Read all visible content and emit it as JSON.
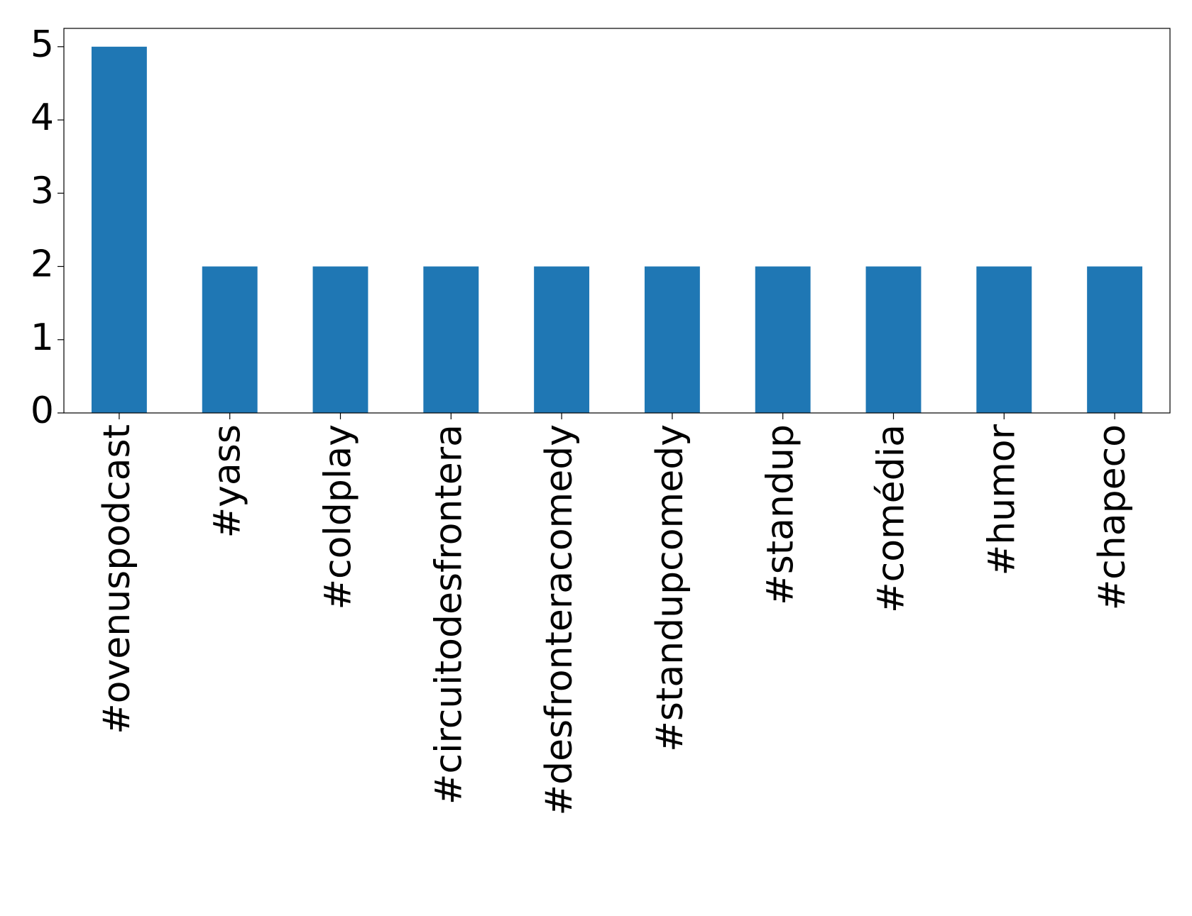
{
  "chart_data": {
    "type": "bar",
    "categories": [
      "#ovenuspodcast",
      "#yass",
      "#coldplay",
      "#circuitodesfrontera",
      "#desfronteracomedy",
      "#standupcomedy",
      "#standup",
      "#comédia",
      "#humor",
      "#chapeco"
    ],
    "values": [
      5,
      2,
      2,
      2,
      2,
      2,
      2,
      2,
      2,
      2
    ],
    "color": "#1f77b4",
    "ylim": [
      0,
      5.25
    ],
    "yticks": [
      0,
      1,
      2,
      3,
      4,
      5
    ],
    "grid": false
  }
}
